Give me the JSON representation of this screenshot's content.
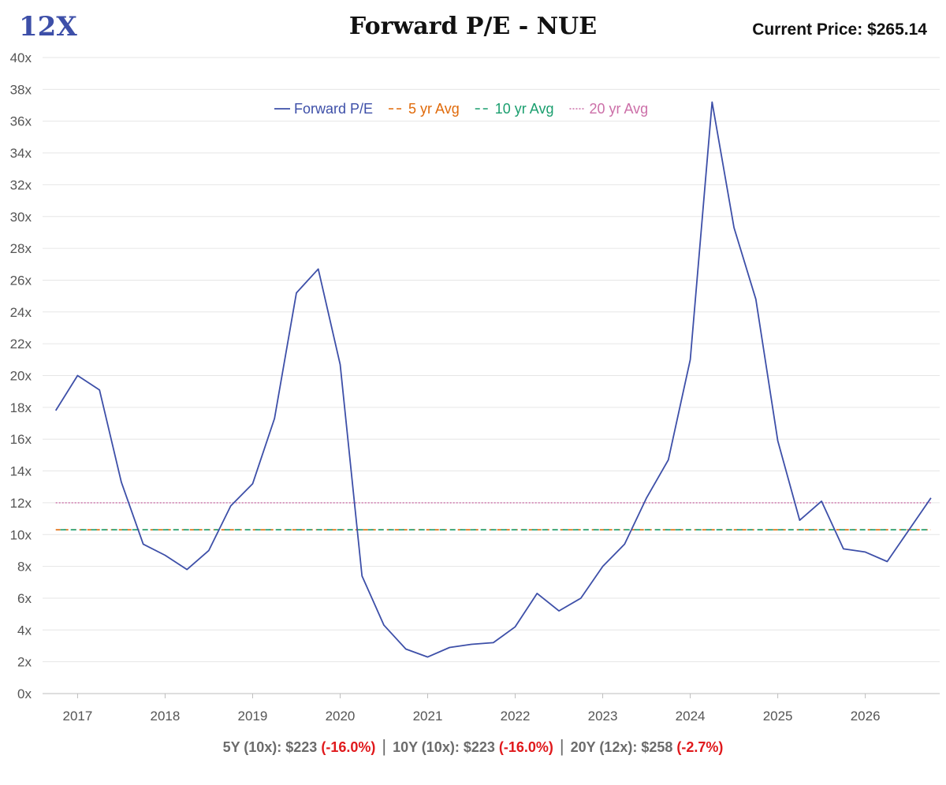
{
  "logo": "12X",
  "title": "Forward P/E - NUE",
  "current_price": {
    "label": "Current Price:",
    "value": "$265.14"
  },
  "footer": [
    {
      "label": "5Y (10x): $223",
      "change": "(-16.0%)"
    },
    {
      "label": "10Y (10x): $223",
      "change": "(-16.0%)"
    },
    {
      "label": "20Y (12x): $258",
      "change": "(-2.7%)"
    }
  ],
  "colors": {
    "forward_pe": "#3d4fa8",
    "avg_5yr": "#e06a0a",
    "avg_10yr": "#1a9e6e",
    "avg_20yr": "#cc6fa8",
    "grid": "#e6e6e6",
    "negative": "#e0191c"
  },
  "chart_data": {
    "type": "line",
    "title": "Forward P/E - NUE",
    "xlabel": "",
    "ylabel": "",
    "x_ticks": [
      "2017",
      "2018",
      "2019",
      "2020",
      "2021",
      "2022",
      "2023",
      "2024",
      "2025",
      "2026"
    ],
    "y_ticks": [
      "0x",
      "2x",
      "4x",
      "6x",
      "8x",
      "10x",
      "12x",
      "14x",
      "16x",
      "18x",
      "20x",
      "22x",
      "24x",
      "26x",
      "28x",
      "30x",
      "32x",
      "34x",
      "36x",
      "38x",
      "40x"
    ],
    "ylim": [
      0,
      40
    ],
    "xlim": [
      2016.6,
      2026.85
    ],
    "grid": "horizontal",
    "legend_position": "top-center",
    "series": [
      {
        "name": "Forward P/E",
        "style": "solid",
        "x": [
          2016.75,
          2017.0,
          2017.25,
          2017.5,
          2017.75,
          2018.0,
          2018.25,
          2018.5,
          2018.75,
          2019.0,
          2019.25,
          2019.5,
          2019.75,
          2020.0,
          2020.25,
          2020.5,
          2020.75,
          2021.0,
          2021.25,
          2021.5,
          2021.75,
          2022.0,
          2022.25,
          2022.5,
          2022.75,
          2023.0,
          2023.25,
          2023.5,
          2023.75,
          2024.0,
          2024.25,
          2024.5,
          2024.75,
          2025.0,
          2025.25,
          2025.5,
          2025.75,
          2026.0,
          2026.25,
          2026.5,
          2026.75
        ],
        "values": [
          17.8,
          20.0,
          19.1,
          13.3,
          9.4,
          8.7,
          7.8,
          9.0,
          11.8,
          13.2,
          17.3,
          25.2,
          26.7,
          20.7,
          7.4,
          4.3,
          2.8,
          2.3,
          2.9,
          3.1,
          3.2,
          4.2,
          6.3,
          5.2,
          6.0,
          8.0,
          9.4,
          12.3,
          14.7,
          21.0,
          37.2,
          29.3,
          24.8,
          15.9,
          10.9,
          12.1,
          9.1,
          8.9,
          8.3,
          10.3,
          12.3
        ]
      },
      {
        "name": "5 yr Avg",
        "style": "dashed",
        "x": [
          2016.75,
          2026.75
        ],
        "values": [
          10.3,
          10.3
        ]
      },
      {
        "name": "10 yr Avg",
        "style": "dashed",
        "x": [
          2016.75,
          2026.75
        ],
        "values": [
          10.3,
          10.3
        ]
      },
      {
        "name": "20 yr Avg",
        "style": "dotted",
        "x": [
          2016.75,
          2026.75
        ],
        "values": [
          12.0,
          12.0
        ]
      }
    ]
  }
}
